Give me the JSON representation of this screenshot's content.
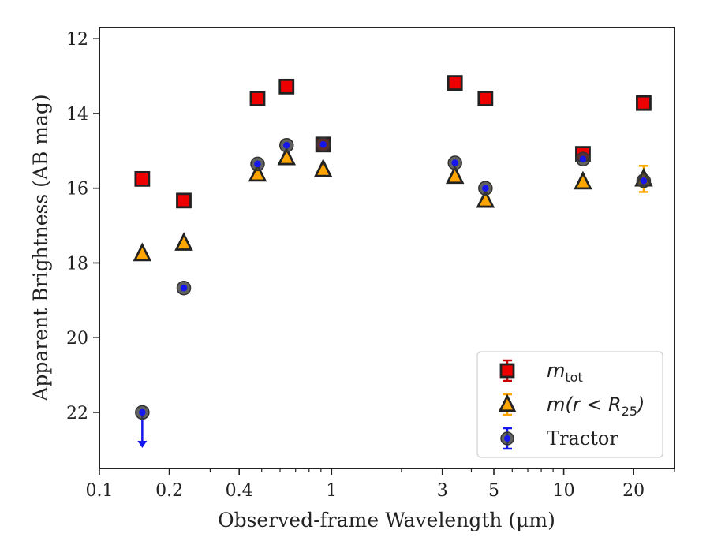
{
  "chart_data": {
    "type": "scatter",
    "xlabel": "Observed-frame Wavelength (μm)",
    "ylabel": "Apparent Brightness (AB mag)",
    "x_scale": "log",
    "xlim": [
      0.1,
      30
    ],
    "ylim": [
      23.5,
      11.7
    ],
    "y_inverted": true,
    "x_ticks": [
      {
        "value": 0.1,
        "label": "0.1"
      },
      {
        "value": 0.2,
        "label": "0.2"
      },
      {
        "value": 0.4,
        "label": "0.4"
      },
      {
        "value": 1,
        "label": "1"
      },
      {
        "value": 3,
        "label": "3"
      },
      {
        "value": 5,
        "label": "5"
      },
      {
        "value": 10,
        "label": "10"
      },
      {
        "value": 20,
        "label": "20"
      }
    ],
    "y_ticks": [
      {
        "value": 12,
        "label": "12"
      },
      {
        "value": 14,
        "label": "14"
      },
      {
        "value": 16,
        "label": "16"
      },
      {
        "value": 18,
        "label": "18"
      },
      {
        "value": 20,
        "label": "20"
      },
      {
        "value": 22,
        "label": "22"
      }
    ],
    "grid": false,
    "legend_position": "lower-right",
    "series": [
      {
        "key": "m_tot",
        "legend_main": "m",
        "legend_sub": "tot",
        "legend_rest": "",
        "marker": "square",
        "color": "#ee0000",
        "errcolor": "#cc0000",
        "points": [
          {
            "x": 0.153,
            "y": 15.75
          },
          {
            "x": 0.231,
            "y": 16.33
          },
          {
            "x": 0.48,
            "y": 13.6
          },
          {
            "x": 0.64,
            "y": 13.28
          },
          {
            "x": 0.92,
            "y": 14.83
          },
          {
            "x": 3.4,
            "y": 13.18
          },
          {
            "x": 4.6,
            "y": 13.6
          },
          {
            "x": 12.1,
            "y": 15.08
          },
          {
            "x": 22.1,
            "y": 13.72
          }
        ]
      },
      {
        "key": "m_r25",
        "legend_main": "m",
        "legend_sub": "25",
        "legend_rest": "(r < R",
        "marker": "triangle",
        "color": "#ffa500",
        "errcolor": "#ffa500",
        "points": [
          {
            "x": 0.153,
            "y": 17.75
          },
          {
            "x": 0.231,
            "y": 17.47
          },
          {
            "x": 0.48,
            "y": 15.62
          },
          {
            "x": 0.64,
            "y": 15.18
          },
          {
            "x": 0.92,
            "y": 15.5
          },
          {
            "x": 3.4,
            "y": 15.68
          },
          {
            "x": 4.6,
            "y": 16.32
          },
          {
            "x": 12.1,
            "y": 15.83
          },
          {
            "x": 22.1,
            "y": 15.75,
            "err": 0.35
          }
        ]
      },
      {
        "key": "tractor",
        "legend_main": "Tractor",
        "legend_sub": "",
        "legend_rest": "",
        "marker": "circle",
        "color": "#1515ee",
        "errcolor": "#1515ee",
        "points": [
          {
            "x": 0.153,
            "y": 22.0,
            "upper_limit": true
          },
          {
            "x": 0.231,
            "y": 18.67
          },
          {
            "x": 0.48,
            "y": 15.35
          },
          {
            "x": 0.64,
            "y": 14.85
          },
          {
            "x": 0.92,
            "y": 14.83
          },
          {
            "x": 3.4,
            "y": 15.32
          },
          {
            "x": 4.6,
            "y": 16.0
          },
          {
            "x": 12.1,
            "y": 15.22
          },
          {
            "x": 22.1,
            "y": 15.8
          }
        ]
      }
    ]
  }
}
